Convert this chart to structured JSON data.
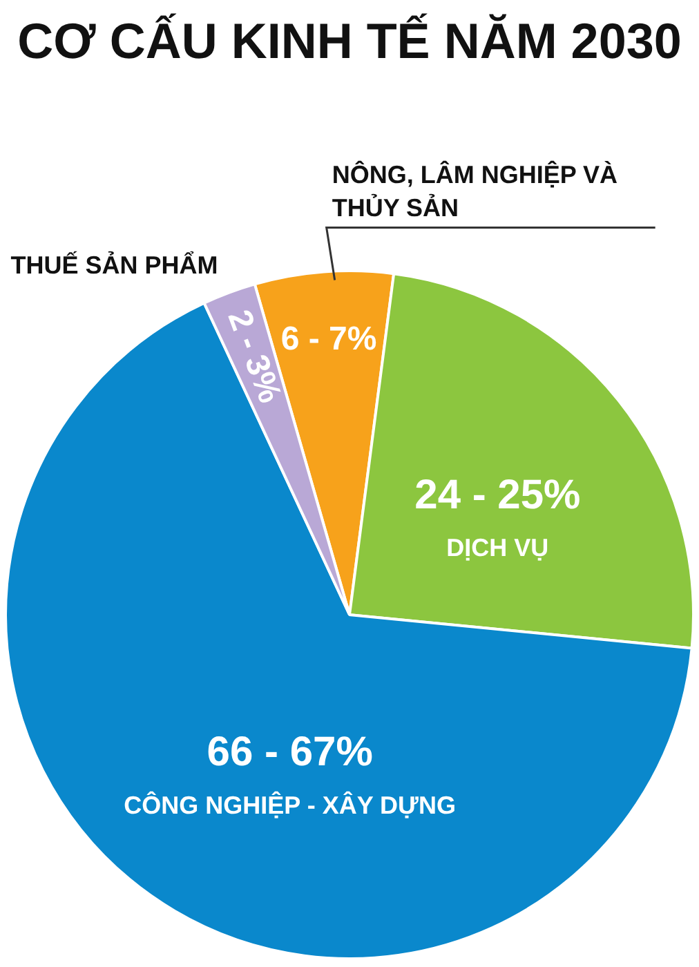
{
  "chart_data": {
    "type": "pie",
    "title": "CƠ CẤU KINH TẾ NĂM 2030",
    "categories": [
      "NÔNG, LÂM NGHIỆP VÀ THỦY SẢN",
      "DỊCH VỤ",
      "CÔNG NGHIỆP - XÂY DỰNG",
      "THUẾ SẢN PHẨM"
    ],
    "values": [
      6.5,
      24.5,
      66.5,
      2.5
    ],
    "colors": [
      "#f7a21b",
      "#8cc63f",
      "#0a88cc",
      "#b9a8d6"
    ],
    "value_labels": [
      "6 - 7%",
      "24 - 25%",
      "66 - 67%",
      "2 - 3%"
    ]
  }
}
